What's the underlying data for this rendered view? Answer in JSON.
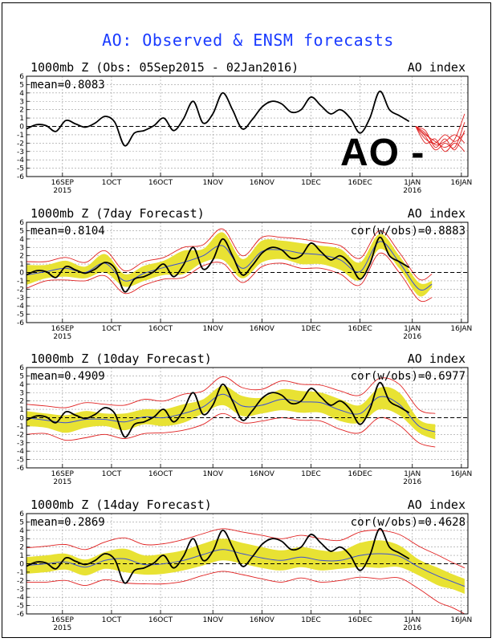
{
  "page": {
    "title": "AO: Observed & ENSM forecasts",
    "overlay_label": "AO -"
  },
  "colors": {
    "title": "#1a3bff",
    "observed": "#000000",
    "ensemble_mean": "#3a4fd6",
    "spread": "#e8e233",
    "members": "#e02020",
    "zero_line": "#000000"
  },
  "chart_data": [
    {
      "type": "line",
      "title": "1000mb Z (Obs: 05Sep2015 - 02Jan2016)",
      "right_label": "AO index",
      "annotation_left": "mean=0.8083",
      "annotation_right": "",
      "ylim": [
        -6,
        6
      ],
      "y_ticks": [
        6,
        5,
        4,
        3,
        2,
        1,
        0,
        -1,
        -2,
        -3,
        -4,
        -5,
        -6
      ],
      "x_range_days": [
        0,
        135
      ],
      "x_ticks": [
        {
          "day": 11,
          "label": "16SEP",
          "sub": "2015"
        },
        {
          "day": 26,
          "label": "1OCT",
          "sub": ""
        },
        {
          "day": 41,
          "label": "16OCT",
          "sub": ""
        },
        {
          "day": 57,
          "label": "1NOV",
          "sub": ""
        },
        {
          "day": 72,
          "label": "16NOV",
          "sub": ""
        },
        {
          "day": 87,
          "label": "1DEC",
          "sub": ""
        },
        {
          "day": 102,
          "label": "16DEC",
          "sub": ""
        },
        {
          "day": 118,
          "label": "1JAN",
          "sub": "2016"
        },
        {
          "day": 133,
          "label": "16JAN",
          "sub": ""
        }
      ],
      "observed": {
        "days": [
          0,
          3,
          6,
          9,
          12,
          15,
          18,
          21,
          24,
          27,
          30,
          33,
          36,
          39,
          42,
          45,
          48,
          51,
          54,
          57,
          60,
          63,
          66,
          69,
          72,
          75,
          78,
          81,
          84,
          87,
          90,
          93,
          96,
          99,
          102,
          105,
          108,
          111,
          114,
          117
        ],
        "values": [
          -0.3,
          0.2,
          0.1,
          -0.6,
          0.7,
          0.3,
          -0.1,
          0.4,
          1.2,
          0.5,
          -2.3,
          -0.8,
          -0.5,
          0.1,
          1.0,
          -0.5,
          0.9,
          3.0,
          0.4,
          1.5,
          4.0,
          2.0,
          -0.3,
          0.8,
          2.3,
          3.0,
          2.7,
          1.7,
          2.0,
          3.5,
          2.5,
          1.5,
          2.0,
          1.0,
          -0.8,
          1.0,
          4.2,
          2.0,
          1.3,
          0.6
        ]
      },
      "members": {
        "start_day": 119,
        "end_day": 134,
        "series": [
          [
            0,
            -1.5,
            -2.0,
            -1.0,
            -1.8,
            -0.8
          ],
          [
            0,
            -0.5,
            -2.5,
            -1.5,
            -2.8,
            -0.5
          ],
          [
            0,
            -1.0,
            -1.8,
            -2.5,
            -1.5,
            1.5
          ],
          [
            0,
            -2.0,
            -1.5,
            -3.0,
            -2.0,
            -3.0
          ],
          [
            0,
            -0.8,
            -2.2,
            -1.8,
            -1.0,
            -2.0
          ],
          [
            0,
            -1.2,
            -2.8,
            -2.0,
            -2.5,
            0.5
          ]
        ]
      },
      "spread": null,
      "mean_line": null
    },
    {
      "type": "line",
      "title": "1000mb Z (7day Forecast)",
      "right_label": "AO index",
      "annotation_left": "mean=0.8104",
      "annotation_right": "cor(w/obs)=0.8883",
      "ylim": [
        -6,
        6
      ],
      "y_ticks": [
        6,
        5,
        4,
        3,
        2,
        1,
        0,
        -1,
        -2,
        -3,
        -4,
        -5,
        -6
      ],
      "x_range_days": [
        0,
        135
      ],
      "x_ticks": [
        {
          "day": 11,
          "label": "16SEP",
          "sub": "2015"
        },
        {
          "day": 26,
          "label": "1OCT",
          "sub": ""
        },
        {
          "day": 41,
          "label": "16OCT",
          "sub": ""
        },
        {
          "day": 57,
          "label": "1NOV",
          "sub": ""
        },
        {
          "day": 72,
          "label": "16NOV",
          "sub": ""
        },
        {
          "day": 87,
          "label": "1DEC",
          "sub": ""
        },
        {
          "day": 102,
          "label": "16DEC",
          "sub": ""
        },
        {
          "day": 118,
          "label": "1JAN",
          "sub": "2016"
        },
        {
          "day": 133,
          "label": "16JAN",
          "sub": ""
        }
      ],
      "observed": {
        "days": [
          0,
          3,
          6,
          9,
          12,
          15,
          18,
          21,
          24,
          27,
          30,
          33,
          36,
          39,
          42,
          45,
          48,
          51,
          54,
          57,
          60,
          63,
          66,
          69,
          72,
          75,
          78,
          81,
          84,
          87,
          90,
          93,
          96,
          99,
          102,
          105,
          108,
          111,
          114,
          117
        ],
        "values": [
          -0.3,
          0.2,
          0.1,
          -0.6,
          0.7,
          0.3,
          -0.1,
          0.4,
          1.2,
          0.5,
          -2.3,
          -0.8,
          -0.5,
          0.1,
          1.0,
          -0.5,
          0.9,
          3.0,
          0.4,
          1.5,
          4.0,
          2.0,
          -0.3,
          0.8,
          2.3,
          3.0,
          2.7,
          1.7,
          2.0,
          3.5,
          2.5,
          1.5,
          2.0,
          1.0,
          -0.8,
          1.0,
          4.2,
          2.0,
          1.3,
          0.6
        ]
      },
      "spread": {
        "days": [
          0,
          6,
          12,
          18,
          24,
          30,
          36,
          42,
          48,
          54,
          60,
          66,
          72,
          78,
          84,
          90,
          96,
          102,
          108,
          114,
          120,
          124
        ],
        "lower": [
          -1.5,
          -0.7,
          -0.5,
          -0.7,
          0.0,
          -1.7,
          -1.0,
          -0.3,
          -0.2,
          1.2,
          1.5,
          -0.7,
          1.2,
          1.6,
          1.0,
          1.0,
          0.3,
          -0.9,
          2.8,
          0.5,
          -2.8,
          -1.8
        ],
        "upper": [
          0.9,
          0.9,
          1.4,
          0.7,
          2.2,
          -0.2,
          0.8,
          1.4,
          2.6,
          2.8,
          4.8,
          1.6,
          3.8,
          3.8,
          3.5,
          3.2,
          2.8,
          1.2,
          4.6,
          2.0,
          -1.2,
          -1.0
        ]
      },
      "mean_line": {
        "days": [
          0,
          6,
          12,
          18,
          24,
          30,
          36,
          42,
          48,
          54,
          60,
          66,
          72,
          78,
          84,
          90,
          96,
          102,
          108,
          114,
          120,
          124
        ],
        "values": [
          -0.3,
          0.1,
          0.5,
          0.0,
          1.1,
          -1.0,
          -0.1,
          0.6,
          1.2,
          2.0,
          3.2,
          0.5,
          2.5,
          2.7,
          2.3,
          2.1,
          1.5,
          0.1,
          3.7,
          1.2,
          -2.0,
          -1.4
        ]
      },
      "members": {
        "envelope_lower": [
          -1.9,
          -1.0,
          -0.9,
          -1.0,
          -0.4,
          -2.5,
          -1.5,
          -0.8,
          -0.6,
          0.8,
          1.1,
          -1.2,
          0.7,
          1.1,
          0.5,
          0.5,
          -0.2,
          -1.5,
          2.3,
          0.0,
          -3.3,
          -3.0
        ],
        "envelope_upper": [
          1.3,
          1.3,
          1.8,
          1.2,
          2.6,
          0.2,
          1.3,
          1.8,
          3.0,
          3.3,
          5.2,
          2.0,
          4.2,
          4.2,
          4.0,
          3.6,
          3.2,
          1.7,
          5.0,
          2.4,
          -0.8,
          -0.2
        ]
      }
    },
    {
      "type": "line",
      "title": "1000mb Z (10day Forecast)",
      "right_label": "AO index",
      "annotation_left": "mean=0.4909",
      "annotation_right": "cor(w/obs)=0.6977",
      "ylim": [
        -6,
        6
      ],
      "y_ticks": [
        6,
        5,
        4,
        3,
        2,
        1,
        0,
        -1,
        -2,
        -3,
        -4,
        -5,
        -6
      ],
      "x_range_days": [
        0,
        135
      ],
      "x_ticks": [
        {
          "day": 11,
          "label": "16SEP",
          "sub": "2015"
        },
        {
          "day": 26,
          "label": "1OCT",
          "sub": ""
        },
        {
          "day": 41,
          "label": "16OCT",
          "sub": ""
        },
        {
          "day": 57,
          "label": "1NOV",
          "sub": ""
        },
        {
          "day": 72,
          "label": "16NOV",
          "sub": ""
        },
        {
          "day": 87,
          "label": "1DEC",
          "sub": ""
        },
        {
          "day": 102,
          "label": "16DEC",
          "sub": ""
        },
        {
          "day": 118,
          "label": "1JAN",
          "sub": "2016"
        },
        {
          "day": 133,
          "label": "16JAN",
          "sub": ""
        }
      ],
      "observed": {
        "days": [
          0,
          3,
          6,
          9,
          12,
          15,
          18,
          21,
          24,
          27,
          30,
          33,
          36,
          39,
          42,
          45,
          48,
          51,
          54,
          57,
          60,
          63,
          66,
          69,
          72,
          75,
          78,
          81,
          84,
          87,
          90,
          93,
          96,
          99,
          102,
          105,
          108,
          111,
          114,
          117
        ],
        "values": [
          -0.3,
          0.2,
          0.1,
          -0.6,
          0.7,
          0.3,
          -0.1,
          0.4,
          1.2,
          0.5,
          -2.3,
          -0.8,
          -0.5,
          0.1,
          1.0,
          -0.5,
          0.9,
          3.0,
          0.4,
          1.5,
          4.0,
          2.0,
          -0.3,
          0.8,
          2.3,
          3.0,
          2.7,
          1.7,
          2.0,
          3.5,
          2.5,
          1.5,
          2.0,
          1.0,
          -0.8,
          1.0,
          4.2,
          2.0,
          1.3,
          0.6
        ]
      },
      "spread": {
        "days": [
          0,
          6,
          12,
          18,
          24,
          30,
          36,
          42,
          48,
          54,
          60,
          66,
          72,
          78,
          84,
          90,
          96,
          102,
          108,
          114,
          120,
          125
        ],
        "lower": [
          -1.0,
          -1.2,
          -1.8,
          -1.2,
          -1.0,
          -1.5,
          -0.8,
          -1.0,
          -0.6,
          0.5,
          1.5,
          0.2,
          0.5,
          0.9,
          0.6,
          0.6,
          -0.4,
          -0.6,
          1.0,
          0.3,
          -1.8,
          -2.6
        ],
        "upper": [
          0.8,
          0.5,
          0.3,
          0.8,
          0.5,
          0.5,
          1.0,
          1.0,
          1.6,
          2.2,
          3.8,
          2.6,
          2.4,
          3.4,
          3.2,
          3.0,
          2.2,
          1.5,
          3.6,
          3.0,
          -0.2,
          -0.8
        ]
      },
      "mean_line": {
        "days": [
          0,
          6,
          12,
          18,
          24,
          30,
          36,
          42,
          48,
          54,
          60,
          66,
          72,
          78,
          84,
          90,
          96,
          102,
          108,
          114,
          120,
          125
        ],
        "values": [
          0.0,
          -0.3,
          -0.6,
          -0.2,
          -0.2,
          -0.5,
          0.1,
          0.0,
          0.5,
          1.3,
          2.8,
          1.4,
          1.5,
          2.2,
          1.9,
          1.8,
          0.9,
          0.5,
          2.5,
          1.6,
          -1.0,
          -1.7
        ]
      },
      "members": {
        "envelope_lower": [
          -2.0,
          -1.9,
          -2.7,
          -2.4,
          -2.0,
          -2.5,
          -1.9,
          -1.8,
          -1.5,
          -0.8,
          0.5,
          -0.6,
          -0.4,
          0.0,
          -0.3,
          -0.4,
          -1.4,
          -1.8,
          0.0,
          -0.9,
          -3.0,
          -3.5
        ],
        "envelope_upper": [
          1.6,
          1.4,
          1.2,
          1.8,
          1.6,
          1.5,
          2.2,
          2.0,
          2.8,
          3.2,
          4.9,
          3.6,
          3.4,
          4.4,
          4.0,
          3.9,
          3.2,
          2.7,
          4.7,
          4.0,
          1.0,
          0.5
        ]
      }
    },
    {
      "type": "line",
      "title": "1000mb Z (14day Forecast)",
      "right_label": "AO index",
      "annotation_left": "mean=0.2869",
      "annotation_right": "cor(w/obs)=0.4628",
      "ylim": [
        -6,
        6
      ],
      "y_ticks": [
        6,
        5,
        4,
        3,
        2,
        1,
        0,
        -1,
        -2,
        -3,
        -4,
        -5,
        -6
      ],
      "x_range_days": [
        0,
        135
      ],
      "x_ticks": [
        {
          "day": 11,
          "label": "16SEP",
          "sub": "2015"
        },
        {
          "day": 26,
          "label": "1OCT",
          "sub": ""
        },
        {
          "day": 41,
          "label": "16OCT",
          "sub": ""
        },
        {
          "day": 57,
          "label": "1NOV",
          "sub": ""
        },
        {
          "day": 72,
          "label": "16NOV",
          "sub": ""
        },
        {
          "day": 87,
          "label": "1DEC",
          "sub": ""
        },
        {
          "day": 102,
          "label": "16DEC",
          "sub": ""
        },
        {
          "day": 118,
          "label": "1JAN",
          "sub": "2016"
        },
        {
          "day": 133,
          "label": "16JAN",
          "sub": ""
        }
      ],
      "observed": {
        "days": [
          0,
          3,
          6,
          9,
          12,
          15,
          18,
          21,
          24,
          27,
          30,
          33,
          36,
          39,
          42,
          45,
          48,
          51,
          54,
          57,
          60,
          63,
          66,
          69,
          72,
          75,
          78,
          81,
          84,
          87,
          90,
          93,
          96,
          99,
          102,
          105,
          108,
          111,
          114,
          117
        ],
        "values": [
          -0.3,
          0.2,
          0.1,
          -0.6,
          0.7,
          0.3,
          -0.1,
          0.4,
          1.2,
          0.5,
          -2.3,
          -0.8,
          -0.5,
          0.1,
          1.0,
          -0.5,
          0.9,
          3.0,
          0.4,
          1.5,
          4.0,
          2.0,
          -0.3,
          0.8,
          2.3,
          3.0,
          2.7,
          1.7,
          2.0,
          3.5,
          2.5,
          1.5,
          2.0,
          1.0,
          -0.8,
          1.0,
          4.2,
          2.0,
          1.3,
          0.6
        ]
      },
      "spread": {
        "days": [
          0,
          6,
          12,
          18,
          24,
          30,
          36,
          42,
          48,
          54,
          60,
          66,
          72,
          78,
          84,
          90,
          96,
          102,
          108,
          114,
          120,
          126,
          130,
          134
        ],
        "lower": [
          -1.2,
          -1.0,
          -0.7,
          -1.4,
          -0.6,
          -1.0,
          -1.3,
          -1.2,
          -0.8,
          -0.2,
          0.4,
          0.0,
          -0.5,
          -0.8,
          -0.4,
          -0.8,
          -0.6,
          -0.4,
          -0.5,
          -0.4,
          -1.4,
          -2.6,
          -3.0,
          -3.6
        ],
        "upper": [
          0.8,
          1.0,
          1.2,
          0.5,
          1.4,
          1.8,
          1.0,
          1.2,
          1.6,
          2.4,
          3.0,
          2.5,
          2.0,
          1.6,
          2.0,
          1.6,
          1.5,
          2.5,
          2.8,
          2.2,
          0.5,
          -0.5,
          -1.2,
          -1.8
        ]
      },
      "mean_line": {
        "days": [
          0,
          6,
          12,
          18,
          24,
          30,
          36,
          42,
          48,
          54,
          60,
          66,
          72,
          78,
          84,
          90,
          96,
          102,
          108,
          114,
          120,
          126,
          130,
          134
        ],
        "values": [
          -0.2,
          0.0,
          0.2,
          -0.4,
          0.4,
          0.6,
          -0.1,
          0.0,
          0.4,
          1.1,
          1.7,
          1.2,
          0.7,
          0.4,
          0.8,
          0.4,
          0.4,
          1.0,
          1.2,
          0.9,
          -0.4,
          -1.5,
          -2.1,
          -2.7
        ]
      },
      "members": {
        "envelope_lower": [
          -2.2,
          -2.2,
          -2.0,
          -2.6,
          -1.9,
          -2.3,
          -2.4,
          -2.4,
          -2.1,
          -1.4,
          -0.9,
          -1.3,
          -1.8,
          -2.2,
          -1.7,
          -2.2,
          -2.0,
          -1.6,
          -1.8,
          -1.7,
          -3.0,
          -4.6,
          -5.2,
          -6.0
        ],
        "envelope_upper": [
          1.9,
          2.1,
          2.3,
          1.7,
          2.6,
          3.1,
          2.3,
          2.4,
          2.9,
          3.6,
          4.2,
          3.8,
          3.4,
          3.0,
          3.4,
          3.0,
          2.8,
          3.8,
          4.0,
          3.5,
          2.1,
          1.0,
          0.2,
          -0.5
        ]
      }
    }
  ]
}
